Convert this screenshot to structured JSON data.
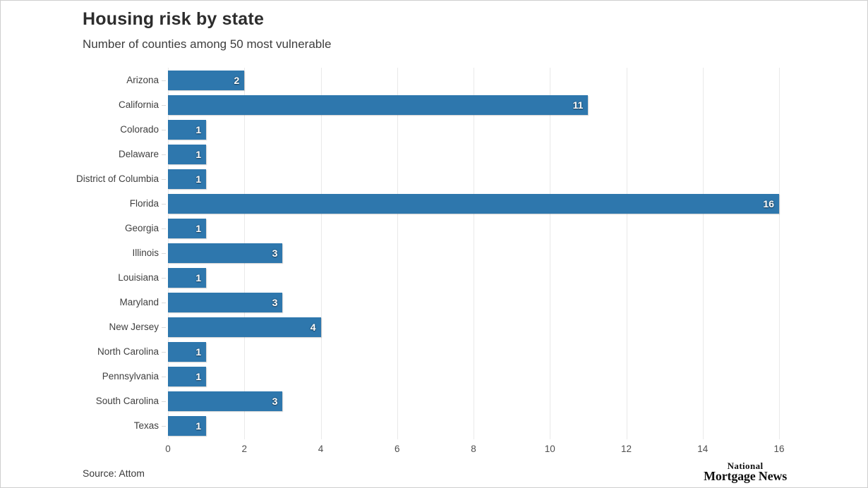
{
  "header": {
    "title": "Housing risk by state",
    "subtitle": "Number of counties among 50 most vulnerable"
  },
  "chart_data": {
    "type": "bar",
    "orientation": "horizontal",
    "title": "Housing risk by state",
    "subtitle": "Number of counties among 50 most vulnerable",
    "categories": [
      "Arizona",
      "California",
      "Colorado",
      "Delaware",
      "District of Columbia",
      "Florida",
      "Georgia",
      "Illinois",
      "Louisiana",
      "Maryland",
      "New Jersey",
      "North Carolina",
      "Pennsylvania",
      "South Carolina",
      "Texas"
    ],
    "values": [
      2,
      11,
      1,
      1,
      1,
      16,
      1,
      3,
      1,
      3,
      4,
      1,
      1,
      3,
      1
    ],
    "xlabel": "",
    "ylabel": "",
    "xlim": [
      0,
      16
    ],
    "x_ticks": [
      0,
      2,
      4,
      6,
      8,
      10,
      12,
      14,
      16
    ],
    "grid": "vertical",
    "legend": "none",
    "bar_color": "#2e77ad",
    "value_label_color": "#ffffff",
    "gridline_color": "#e9e9e9"
  },
  "footer": {
    "source": "Source: Attom",
    "logo_line1": "National",
    "logo_line2": "Mortgage News"
  }
}
